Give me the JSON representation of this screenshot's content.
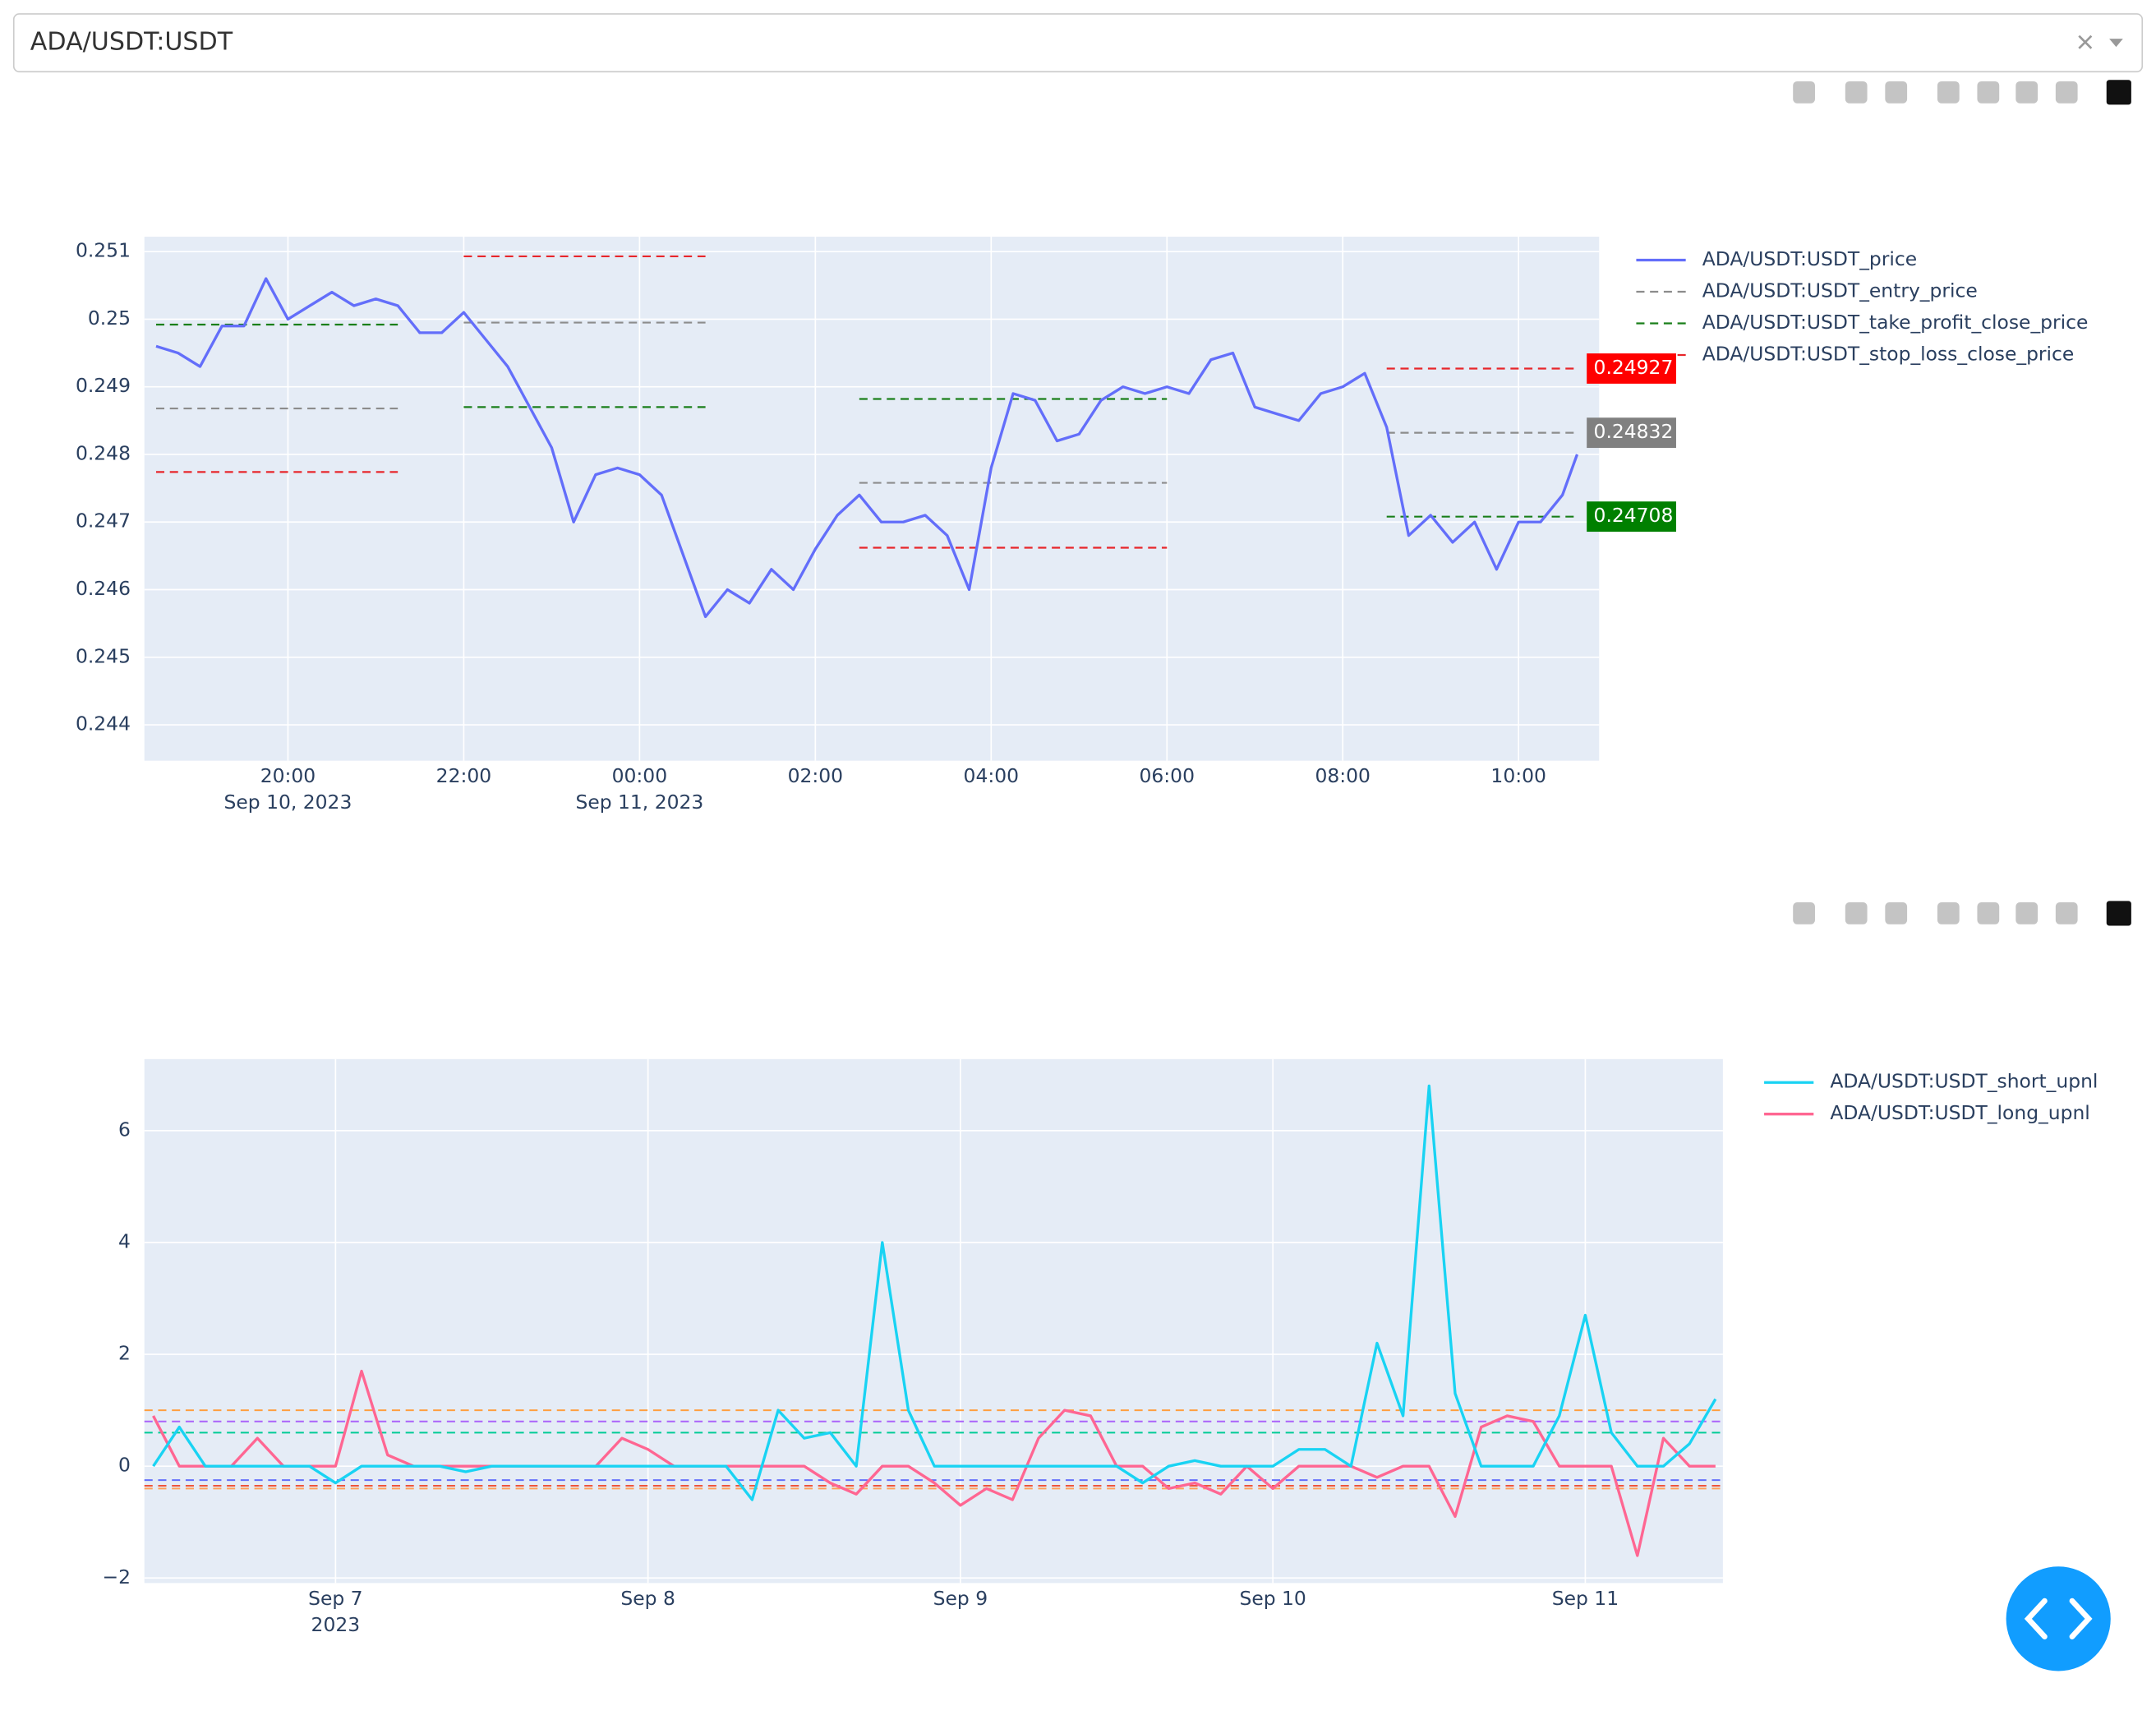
{
  "dropdown": {
    "value": "ADA/USDT:USDT"
  },
  "chart_data": [
    {
      "type": "line",
      "x": [
        "2023-09-10 18:30",
        "2023-09-10 18:45",
        "2023-09-10 19:00",
        "2023-09-10 19:15",
        "2023-09-10 19:30",
        "2023-09-10 19:45",
        "2023-09-10 20:00",
        "2023-09-10 20:15",
        "2023-09-10 20:30",
        "2023-09-10 20:45",
        "2023-09-10 21:00",
        "2023-09-10 21:15",
        "2023-09-10 21:30",
        "2023-09-10 21:45",
        "2023-09-10 22:00",
        "2023-09-10 22:15",
        "2023-09-10 22:30",
        "2023-09-10 22:45",
        "2023-09-10 23:00",
        "2023-09-10 23:15",
        "2023-09-10 23:30",
        "2023-09-10 23:45",
        "2023-09-11 00:00",
        "2023-09-11 00:15",
        "2023-09-11 00:30",
        "2023-09-11 00:45",
        "2023-09-11 01:00",
        "2023-09-11 01:15",
        "2023-09-11 01:30",
        "2023-09-11 01:45",
        "2023-09-11 02:00",
        "2023-09-11 02:15",
        "2023-09-11 02:30",
        "2023-09-11 02:45",
        "2023-09-11 03:00",
        "2023-09-11 03:15",
        "2023-09-11 03:30",
        "2023-09-11 03:45",
        "2023-09-11 04:00",
        "2023-09-11 04:15",
        "2023-09-11 04:30",
        "2023-09-11 04:45",
        "2023-09-11 05:00",
        "2023-09-11 05:15",
        "2023-09-11 05:30",
        "2023-09-11 05:45",
        "2023-09-11 06:00",
        "2023-09-11 06:15",
        "2023-09-11 06:30",
        "2023-09-11 06:45",
        "2023-09-11 07:00",
        "2023-09-11 07:15",
        "2023-09-11 07:30",
        "2023-09-11 07:45",
        "2023-09-11 08:00",
        "2023-09-11 08:15",
        "2023-09-11 08:30",
        "2023-09-11 08:45",
        "2023-09-11 09:00",
        "2023-09-11 09:15",
        "2023-09-11 09:30",
        "2023-09-11 09:45",
        "2023-09-11 10:00",
        "2023-09-11 10:15",
        "2023-09-11 10:30",
        "2023-09-11 10:40"
      ],
      "xlim": [
        "2023-09-10 18:22",
        "2023-09-11 10:55"
      ],
      "xticks": [
        {
          "value": "2023-09-10 20:00",
          "label": "20:00",
          "sublabel": "Sep 10, 2023"
        },
        {
          "value": "2023-09-10 22:00",
          "label": "22:00"
        },
        {
          "value": "2023-09-11 00:00",
          "label": "00:00",
          "sublabel": "Sep 11, 2023"
        },
        {
          "value": "2023-09-11 02:00",
          "label": "02:00"
        },
        {
          "value": "2023-09-11 04:00",
          "label": "04:00"
        },
        {
          "value": "2023-09-11 06:00",
          "label": "06:00"
        },
        {
          "value": "2023-09-11 08:00",
          "label": "08:00"
        },
        {
          "value": "2023-09-11 10:00",
          "label": "10:00"
        }
      ],
      "ylim": [
        0.24347,
        0.25122
      ],
      "yticks": [
        0.244,
        0.245,
        0.246,
        0.247,
        0.248,
        0.249,
        0.25,
        0.251
      ],
      "grid": true,
      "legend": "right",
      "series": [
        {
          "name": "ADA/USDT:USDT_price",
          "color": "#636efa",
          "dash": false,
          "values": [
            0.2496,
            0.2495,
            0.2493,
            0.2499,
            0.2499,
            0.2506,
            0.25,
            0.2502,
            0.2504,
            0.2502,
            0.2503,
            0.2502,
            0.2498,
            0.2498,
            0.2501,
            0.2497,
            0.2493,
            0.2487,
            0.2481,
            0.247,
            0.2477,
            0.2478,
            0.2477,
            0.2474,
            0.2465,
            0.2456,
            0.246,
            0.2458,
            0.2463,
            0.246,
            0.2466,
            0.2471,
            0.2474,
            0.247,
            0.247,
            0.2471,
            0.2468,
            0.246,
            0.2478,
            0.2489,
            0.2488,
            0.2482,
            0.2483,
            0.2488,
            0.249,
            0.2489,
            0.249,
            0.2489,
            0.2494,
            0.2495,
            0.2487,
            0.2486,
            0.2485,
            0.2489,
            0.249,
            0.2492,
            0.2484,
            0.2468,
            0.2471,
            0.2467,
            0.247,
            0.2463,
            0.247,
            0.247,
            0.2474,
            0.248
          ]
        },
        {
          "name": "ADA/USDT:USDT_entry_price",
          "color": "#8c8c8c",
          "dash": true,
          "values": [
            0.24868,
            0.24868,
            0.24868,
            0.24868,
            0.24868,
            0.24868,
            0.24868,
            0.24868,
            0.24868,
            0.24868,
            0.24868,
            0.24868,
            null,
            null,
            0.24995,
            0.24995,
            0.24995,
            0.24995,
            0.24995,
            0.24995,
            0.24995,
            0.24995,
            0.24995,
            0.24995,
            0.24995,
            0.24995,
            null,
            null,
            null,
            null,
            null,
            null,
            0.24758,
            0.24758,
            0.24758,
            0.24758,
            0.24758,
            0.24758,
            0.24758,
            0.24758,
            0.24758,
            0.24758,
            0.24758,
            0.24758,
            0.24758,
            0.24758,
            0.24758,
            null,
            null,
            null,
            null,
            null,
            null,
            null,
            null,
            null,
            0.24832,
            0.24832,
            0.24832,
            0.24832,
            0.24832,
            0.24832,
            0.24832,
            0.24832,
            0.24832,
            0.24832
          ]
        },
        {
          "name": "ADA/USDT:USDT_take_profit_close_price",
          "color": "#1a7f1a",
          "dash": true,
          "values": [
            0.24992,
            0.24992,
            0.24992,
            0.24992,
            0.24992,
            0.24992,
            0.24992,
            0.24992,
            0.24992,
            0.24992,
            0.24992,
            0.24992,
            null,
            null,
            0.2487,
            0.2487,
            0.2487,
            0.2487,
            0.2487,
            0.2487,
            0.2487,
            0.2487,
            0.2487,
            0.2487,
            0.2487,
            0.2487,
            null,
            null,
            null,
            null,
            null,
            null,
            0.24882,
            0.24882,
            0.24882,
            0.24882,
            0.24882,
            0.24882,
            0.24882,
            0.24882,
            0.24882,
            0.24882,
            0.24882,
            0.24882,
            0.24882,
            0.24882,
            0.24882,
            null,
            null,
            null,
            null,
            null,
            null,
            null,
            null,
            null,
            0.24708,
            0.24708,
            0.24708,
            0.24708,
            0.24708,
            0.24708,
            0.24708,
            0.24708,
            0.24708,
            0.24708
          ]
        },
        {
          "name": "ADA/USDT:USDT_stop_loss_close_price",
          "color": "#e8262b",
          "dash": true,
          "values": [
            0.24774,
            0.24774,
            0.24774,
            0.24774,
            0.24774,
            0.24774,
            0.24774,
            0.24774,
            0.24774,
            0.24774,
            0.24774,
            0.24774,
            null,
            null,
            0.25093,
            0.25093,
            0.25093,
            0.25093,
            0.25093,
            0.25093,
            0.25093,
            0.25093,
            0.25093,
            0.25093,
            0.25093,
            0.25093,
            null,
            null,
            null,
            null,
            null,
            null,
            0.24662,
            0.24662,
            0.24662,
            0.24662,
            0.24662,
            0.24662,
            0.24662,
            0.24662,
            0.24662,
            0.24662,
            0.24662,
            0.24662,
            0.24662,
            0.24662,
            0.24662,
            null,
            null,
            null,
            null,
            null,
            null,
            null,
            null,
            null,
            0.24927,
            0.24927,
            0.24927,
            0.24927,
            0.24927,
            0.24927,
            0.24927,
            0.24927,
            0.24927,
            0.24927
          ]
        }
      ],
      "end_labels": [
        {
          "value": 0.24927,
          "color": "#ff0000"
        },
        {
          "value": 0.24832,
          "color": "#808080"
        },
        {
          "value": 0.24708,
          "color": "#008000"
        }
      ]
    },
    {
      "type": "line",
      "x": [
        "2023-09-06 10:00",
        "2023-09-06 12:00",
        "2023-09-06 14:00",
        "2023-09-06 16:00",
        "2023-09-06 18:00",
        "2023-09-06 20:00",
        "2023-09-06 22:00",
        "2023-09-07 00:00",
        "2023-09-07 02:00",
        "2023-09-07 04:00",
        "2023-09-07 06:00",
        "2023-09-07 08:00",
        "2023-09-07 10:00",
        "2023-09-07 12:00",
        "2023-09-07 14:00",
        "2023-09-07 16:00",
        "2023-09-07 18:00",
        "2023-09-07 20:00",
        "2023-09-07 22:00",
        "2023-09-08 00:00",
        "2023-09-08 02:00",
        "2023-09-08 04:00",
        "2023-09-08 06:00",
        "2023-09-08 08:00",
        "2023-09-08 10:00",
        "2023-09-08 12:00",
        "2023-09-08 14:00",
        "2023-09-08 16:00",
        "2023-09-08 18:00",
        "2023-09-08 20:00",
        "2023-09-08 22:00",
        "2023-09-09 00:00",
        "2023-09-09 02:00",
        "2023-09-09 04:00",
        "2023-09-09 06:00",
        "2023-09-09 08:00",
        "2023-09-09 10:00",
        "2023-09-09 12:00",
        "2023-09-09 14:00",
        "2023-09-09 16:00",
        "2023-09-09 18:00",
        "2023-09-09 20:00",
        "2023-09-09 22:00",
        "2023-09-10 00:00",
        "2023-09-10 02:00",
        "2023-09-10 04:00",
        "2023-09-10 06:00",
        "2023-09-10 08:00",
        "2023-09-10 10:00",
        "2023-09-10 12:00",
        "2023-09-10 14:00",
        "2023-09-10 16:00",
        "2023-09-10 18:00",
        "2023-09-10 20:00",
        "2023-09-10 22:00",
        "2023-09-11 00:00",
        "2023-09-11 02:00",
        "2023-09-11 04:00",
        "2023-09-11 06:00",
        "2023-09-11 08:00",
        "2023-09-11 10:00"
      ],
      "xlim": [
        "2023-09-06 09:19",
        "2023-09-11 10:34"
      ],
      "xticks": [
        {
          "value": "2023-09-07 00:00",
          "label": "Sep 7",
          "sublabel": "2023"
        },
        {
          "value": "2023-09-08 00:00",
          "label": "Sep 8"
        },
        {
          "value": "2023-09-09 00:00",
          "label": "Sep 9"
        },
        {
          "value": "2023-09-10 00:00",
          "label": "Sep 10"
        },
        {
          "value": "2023-09-11 00:00",
          "label": "Sep 11"
        }
      ],
      "ylim": [
        -2.09,
        7.28
      ],
      "yticks": [
        {
          "value": -2,
          "label": "−2"
        },
        0,
        2,
        4,
        6
      ],
      "grid": true,
      "legend": "right",
      "reference_lines": [
        {
          "value": 1.0,
          "color": "#ff9f40"
        },
        {
          "value": 0.8,
          "color": "#ab63fa"
        },
        {
          "value": 0.6,
          "color": "#00cc96"
        },
        {
          "value": -0.25,
          "color": "#636efa"
        },
        {
          "value": -0.35,
          "color": "#ef553b"
        },
        {
          "value": -0.4,
          "color": "#ffa15a"
        }
      ],
      "series": [
        {
          "name": "ADA/USDT:USDT_short_upnl",
          "color": "#19d3f3",
          "dash": false,
          "values": [
            0,
            0.7,
            0,
            0,
            0,
            0,
            0,
            -0.3,
            0,
            0,
            0,
            0,
            -0.1,
            0,
            0,
            0,
            0,
            0,
            0,
            0,
            0,
            0,
            0,
            -0.6,
            1.0,
            0.5,
            0.6,
            0,
            4.0,
            1.0,
            0,
            0,
            0,
            0,
            0,
            0,
            0,
            0,
            -0.3,
            0,
            0.1,
            0,
            0,
            0,
            0.3,
            0.3,
            0,
            2.2,
            0.9,
            6.8,
            1.3,
            0,
            0,
            0,
            0.9,
            2.7,
            0.6,
            0,
            0,
            0.4,
            1.2
          ]
        },
        {
          "name": "ADA/USDT:USDT_long_upnl",
          "color": "#ff6692",
          "dash": false,
          "values": [
            0.9,
            0,
            0,
            0,
            0.5,
            0,
            0,
            0,
            1.7,
            0.2,
            0,
            0,
            0,
            0,
            0,
            0,
            0,
            0,
            0.5,
            0.3,
            0,
            0,
            0,
            0,
            0,
            0,
            -0.3,
            -0.5,
            0,
            0,
            -0.3,
            -0.7,
            -0.4,
            -0.6,
            0.5,
            1.0,
            0.9,
            0,
            0,
            -0.4,
            -0.3,
            -0.5,
            0,
            -0.4,
            0,
            0,
            0,
            -0.2,
            0,
            0,
            -0.9,
            0.7,
            0.9,
            0.8,
            0,
            0,
            0,
            -1.6,
            0.5,
            0,
            0
          ]
        }
      ]
    }
  ]
}
